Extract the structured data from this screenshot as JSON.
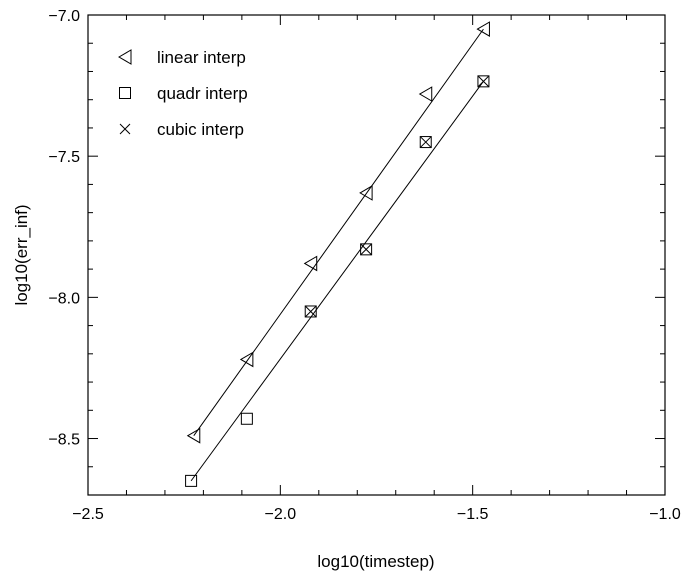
{
  "chart_data": {
    "type": "scatter",
    "title": "",
    "xlabel": "log10(timestep)",
    "ylabel": "log10(err_inf)",
    "xlim": [
      -2.5,
      -1.0
    ],
    "ylim": [
      -8.7,
      -7.0
    ],
    "xticks": [
      -2.5,
      -2.0,
      -1.5,
      -1.0
    ],
    "xtick_labels": [
      "−2.5",
      "−2.0",
      "−1.5",
      "−1.0"
    ],
    "yticks": [
      -8.5,
      -8.0,
      -7.5,
      -7.0
    ],
    "ytick_labels": [
      "−8.5",
      "−8.0",
      "−7.5",
      "−7.0"
    ],
    "minor_ticks_per_major": 5,
    "grid": false,
    "legend_position": "top-left",
    "series": [
      {
        "name": "linear interp",
        "marker": "triangle-left",
        "x": [
          -2.225,
          -2.087,
          -1.921,
          -1.777,
          -1.622,
          -1.472
        ],
        "y": [
          -8.49,
          -8.22,
          -7.88,
          -7.63,
          -7.28,
          -7.05
        ]
      },
      {
        "name": "quadr interp",
        "marker": "square",
        "x": [
          -2.232,
          -2.087,
          -1.921,
          -1.777,
          -1.622,
          -1.472
        ],
        "y": [
          -8.65,
          -8.43,
          -8.05,
          -7.83,
          -7.45,
          -7.235
        ]
      },
      {
        "name": "cubic interp",
        "marker": "x",
        "x": [
          -1.921,
          -1.777,
          -1.622,
          -1.472
        ],
        "y": [
          -8.05,
          -7.83,
          -7.45,
          -7.235
        ]
      }
    ],
    "fit_lines": [
      {
        "x": [
          -2.225,
          -1.472
        ],
        "y": [
          -8.49,
          -7.05
        ]
      },
      {
        "x": [
          -2.232,
          -1.472
        ],
        "y": [
          -8.65,
          -7.235
        ]
      }
    ]
  }
}
